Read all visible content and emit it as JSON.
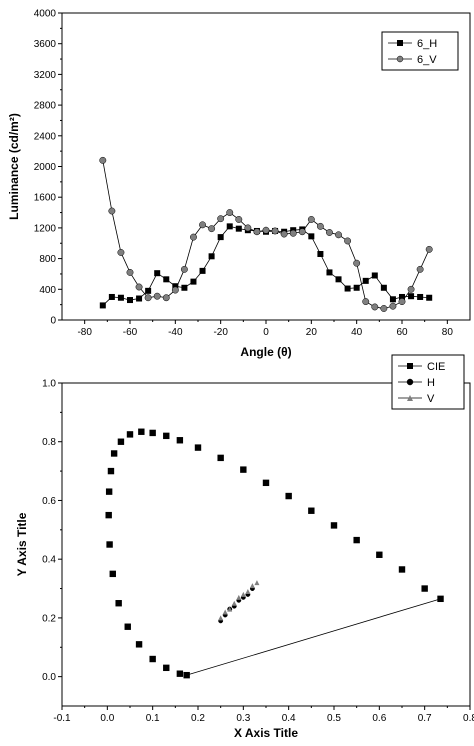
{
  "chart_data": [
    {
      "type": "line",
      "title": "",
      "xlabel": "Angle (θ)",
      "ylabel": "Luminance (cd/m²)",
      "xlim": [
        -90,
        90
      ],
      "ylim": [
        0,
        4000
      ],
      "xticks": [
        -80,
        -60,
        -40,
        -20,
        0,
        20,
        40,
        60,
        80
      ],
      "yticks": [
        0,
        400,
        800,
        1200,
        1600,
        2000,
        2400,
        2800,
        3200,
        3600,
        4000
      ],
      "legend_position": "top-right",
      "grid": false,
      "series": [
        {
          "name": "6_H",
          "marker": "square",
          "color": "#000000",
          "x": [
            -72,
            -68,
            -64,
            -60,
            -56,
            -52,
            -48,
            -44,
            -40,
            -36,
            -32,
            -28,
            -24,
            -20,
            -16,
            -12,
            -8,
            -4,
            0,
            4,
            8,
            12,
            16,
            20,
            24,
            28,
            32,
            36,
            40,
            44,
            48,
            52,
            56,
            60,
            64,
            68,
            72
          ],
          "y": [
            190,
            300,
            290,
            260,
            280,
            380,
            610,
            530,
            440,
            420,
            500,
            640,
            830,
            1080,
            1220,
            1190,
            1170,
            1160,
            1150,
            1160,
            1150,
            1170,
            1180,
            1090,
            860,
            620,
            530,
            410,
            420,
            510,
            580,
            420,
            270,
            300,
            310,
            300,
            290
          ]
        },
        {
          "name": "6_V",
          "marker": "circle",
          "color": "#7f7f7f",
          "x": [
            -72,
            -68,
            -64,
            -60,
            -56,
            -52,
            -48,
            -44,
            -40,
            -36,
            -32,
            -28,
            -24,
            -20,
            -16,
            -12,
            -8,
            -4,
            0,
            4,
            8,
            12,
            16,
            20,
            24,
            28,
            32,
            36,
            40,
            44,
            48,
            52,
            56,
            60,
            64,
            68,
            72
          ],
          "y": [
            2080,
            1420,
            880,
            620,
            430,
            290,
            310,
            290,
            390,
            660,
            1080,
            1240,
            1190,
            1320,
            1400,
            1310,
            1200,
            1150,
            1170,
            1160,
            1120,
            1130,
            1150,
            1310,
            1220,
            1140,
            1110,
            1030,
            740,
            240,
            170,
            150,
            180,
            240,
            400,
            660,
            920
          ]
        }
      ]
    },
    {
      "type": "scatter",
      "title": "",
      "xlabel": "X Axis Title",
      "ylabel": "Y Axis Title",
      "xlim": [
        -0.1,
        0.8
      ],
      "ylim": [
        -0.1,
        1.0
      ],
      "xticks": [
        -0.1,
        0.0,
        0.1,
        0.2,
        0.3,
        0.4,
        0.5,
        0.6,
        0.7,
        0.8
      ],
      "xtick_labels": [
        "-0.1",
        "0.0",
        "0.1",
        "0.2",
        "0.3",
        "0.4",
        "0.5",
        "0.6",
        "0.7",
        "0.8"
      ],
      "yticks": [
        0.0,
        0.2,
        0.4,
        0.6,
        0.8,
        1.0
      ],
      "ytick_labels": [
        "0.0",
        "0.2",
        "0.4",
        "0.6",
        "0.8",
        "1.0"
      ],
      "legend_position": "top-right",
      "grid": false,
      "series": [
        {
          "name": "CIE",
          "marker": "square",
          "color": "#000000",
          "x": [
            0.175,
            0.16,
            0.13,
            0.1,
            0.07,
            0.045,
            0.025,
            0.012,
            0.005,
            0.003,
            0.004,
            0.008,
            0.015,
            0.03,
            0.05,
            0.075,
            0.1,
            0.13,
            0.16,
            0.2,
            0.25,
            0.3,
            0.35,
            0.4,
            0.45,
            0.5,
            0.55,
            0.6,
            0.65,
            0.7,
            0.735
          ],
          "y": [
            0.005,
            0.01,
            0.03,
            0.06,
            0.11,
            0.17,
            0.25,
            0.35,
            0.45,
            0.55,
            0.63,
            0.7,
            0.76,
            0.8,
            0.825,
            0.834,
            0.83,
            0.82,
            0.805,
            0.78,
            0.745,
            0.705,
            0.66,
            0.615,
            0.565,
            0.515,
            0.465,
            0.415,
            0.365,
            0.3,
            0.265
          ]
        },
        {
          "name": "H",
          "marker": "circle",
          "color": "#000000",
          "x": [
            0.25,
            0.26,
            0.27,
            0.28,
            0.29,
            0.3,
            0.31,
            0.32
          ],
          "y": [
            0.19,
            0.21,
            0.23,
            0.24,
            0.26,
            0.27,
            0.28,
            0.3
          ]
        },
        {
          "name": "V",
          "marker": "triangle",
          "color": "#7f7f7f",
          "x": [
            0.25,
            0.26,
            0.27,
            0.28,
            0.29,
            0.3,
            0.31,
            0.32,
            0.33
          ],
          "y": [
            0.2,
            0.22,
            0.23,
            0.25,
            0.27,
            0.28,
            0.29,
            0.31,
            0.32
          ]
        }
      ]
    }
  ]
}
